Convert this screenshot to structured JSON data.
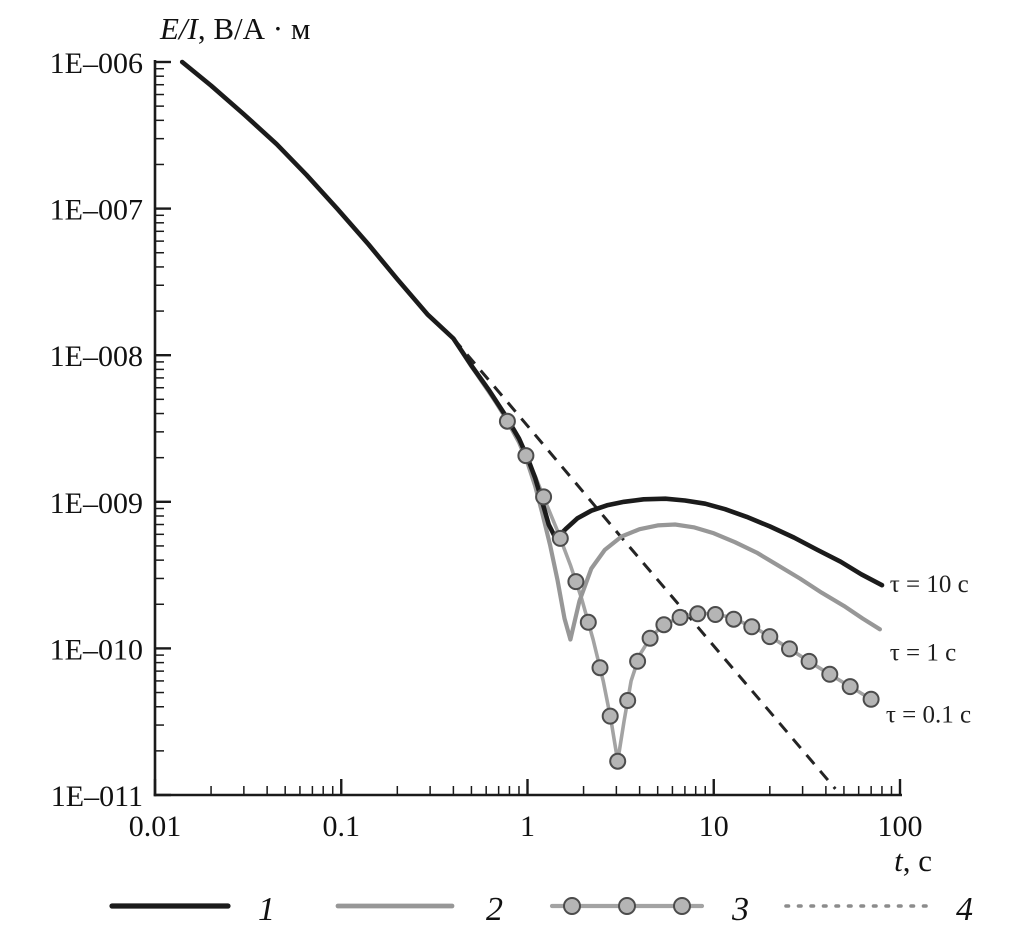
{
  "chart_data": {
    "type": "line",
    "title": "",
    "background": "#ffffff",
    "grid": false,
    "legend_position": "bottom",
    "x_axis": {
      "label": "t, с",
      "label_italic": "t",
      "label_rest": ", с",
      "scale": "log",
      "min": 0.01,
      "max": 100,
      "ticks": [
        {
          "label": "0.01",
          "value": 0.01
        },
        {
          "label": "0.1",
          "value": 0.1
        },
        {
          "label": "1",
          "value": 1
        },
        {
          "label": "10",
          "value": 10
        },
        {
          "label": "100",
          "value": 100
        }
      ]
    },
    "y_axis": {
      "label": "E/I, В/А · м",
      "label_italic": "E/I",
      "label_rest": ", В/А · м",
      "scale": "log",
      "min": 1e-11,
      "max": 1e-06,
      "ticks": [
        {
          "label": "1E–006",
          "value": 1e-06
        },
        {
          "label": "1E–007",
          "value": 1e-07
        },
        {
          "label": "1E–008",
          "value": 1e-08
        },
        {
          "label": "1E–009",
          "value": 1e-09
        },
        {
          "label": "1E–010",
          "value": 1e-10
        },
        {
          "label": "1E–011",
          "value": 1e-11
        }
      ]
    },
    "series": [
      {
        "id": "1",
        "legend_label": "1",
        "annotation": "τ = 10 с",
        "style": "solid",
        "color": "#1b1b1b",
        "width": 4.6,
        "points": [
          [
            0.014,
            1e-06
          ],
          [
            0.02,
            6.9e-07
          ],
          [
            0.03,
            4.4e-07
          ],
          [
            0.045,
            2.75e-07
          ],
          [
            0.065,
            1.7e-07
          ],
          [
            0.095,
            1e-07
          ],
          [
            0.14,
            5.7e-08
          ],
          [
            0.2,
            3.3e-08
          ],
          [
            0.29,
            1.9e-08
          ],
          [
            0.4,
            1.3e-08
          ],
          [
            0.5,
            8.5e-09
          ],
          [
            0.62,
            5.8e-09
          ],
          [
            0.75,
            4e-09
          ],
          [
            0.9,
            2.7e-09
          ],
          [
            1.0,
            2e-09
          ],
          [
            1.1,
            1.45e-09
          ],
          [
            1.2,
            1e-09
          ],
          [
            1.3,
            7e-10
          ],
          [
            1.42,
            5.6e-10
          ],
          [
            1.6,
            6.5e-10
          ],
          [
            1.85,
            7.7e-10
          ],
          [
            2.2,
            8.7e-10
          ],
          [
            2.7,
            9.5e-10
          ],
          [
            3.3,
            1e-09
          ],
          [
            4.2,
            1.04e-09
          ],
          [
            5.5,
            1.05e-09
          ],
          [
            7,
            1.02e-09
          ],
          [
            9,
            9.7e-10
          ],
          [
            11.5,
            8.9e-10
          ],
          [
            15,
            7.9e-10
          ],
          [
            20,
            6.8e-10
          ],
          [
            27,
            5.7e-10
          ],
          [
            36,
            4.7e-10
          ],
          [
            48,
            3.9e-10
          ],
          [
            62,
            3.2e-10
          ],
          [
            80,
            2.7e-10
          ]
        ]
      },
      {
        "id": "2",
        "legend_label": "2",
        "annotation": "τ = 1 с",
        "style": "solid",
        "color": "#979797",
        "width": 4.2,
        "points": [
          [
            0.4,
            1.3e-08
          ],
          [
            0.5,
            8.4e-09
          ],
          [
            0.62,
            5.7e-09
          ],
          [
            0.75,
            3.9e-09
          ],
          [
            0.9,
            2.55e-09
          ],
          [
            1.0,
            1.85e-09
          ],
          [
            1.1,
            1.28e-09
          ],
          [
            1.2,
            8.4e-10
          ],
          [
            1.32,
            5.1e-10
          ],
          [
            1.45,
            2.9e-10
          ],
          [
            1.58,
            1.6e-10
          ],
          [
            1.7,
            1.15e-10
          ],
          [
            1.9,
            2.1e-10
          ],
          [
            2.2,
            3.5e-10
          ],
          [
            2.6,
            4.7e-10
          ],
          [
            3.2,
            5.8e-10
          ],
          [
            4,
            6.5e-10
          ],
          [
            5,
            6.9e-10
          ],
          [
            6.2,
            7e-10
          ],
          [
            7.8,
            6.7e-10
          ],
          [
            10,
            6.1e-10
          ],
          [
            13,
            5.3e-10
          ],
          [
            17,
            4.5e-10
          ],
          [
            22,
            3.7e-10
          ],
          [
            29,
            3e-10
          ],
          [
            38,
            2.4e-10
          ],
          [
            50,
            1.95e-10
          ],
          [
            63,
            1.6e-10
          ],
          [
            78,
            1.35e-10
          ]
        ]
      },
      {
        "id": "3",
        "legend_label": "3",
        "annotation": "τ = 0.1 с",
        "style": "solid-markers",
        "color": "#a3a3a3",
        "width": 3.6,
        "marker": {
          "shape": "circle",
          "radius": 7.5,
          "fill": "#b5b5b5",
          "stroke": "#4c4c4c"
        },
        "points": [
          [
            0.45,
            1.05e-08
          ],
          [
            0.55,
            7e-09
          ],
          [
            0.68,
            4.7e-09
          ],
          [
            0.82,
            3.2e-09
          ],
          [
            0.95,
            2.25e-09
          ],
          [
            1.1,
            1.5e-09
          ],
          [
            1.25,
            1e-09
          ],
          [
            1.45,
            6.3e-10
          ],
          [
            1.7,
            3.7e-10
          ],
          [
            1.95,
            2.2e-10
          ],
          [
            2.25,
            1.15e-10
          ],
          [
            2.55,
            6e-11
          ],
          [
            2.8,
            3.3e-11
          ],
          [
            3.05,
            1.7e-11
          ],
          [
            3.3,
            3.2e-11
          ],
          [
            3.6,
            6e-11
          ],
          [
            4.0,
            9e-11
          ],
          [
            4.6,
            1.2e-10
          ],
          [
            5.4,
            1.45e-10
          ],
          [
            6.5,
            1.62e-10
          ],
          [
            8,
            1.72e-10
          ],
          [
            9.5,
            1.73e-10
          ],
          [
            11.5,
            1.66e-10
          ],
          [
            14,
            1.52e-10
          ],
          [
            17.5,
            1.33e-10
          ],
          [
            22,
            1.12e-10
          ],
          [
            28,
            9.2e-11
          ],
          [
            36,
            7.5e-11
          ],
          [
            46,
            6.2e-11
          ],
          [
            58,
            5.2e-11
          ],
          [
            72,
            4.4e-11
          ]
        ],
        "marker_t": [
          0.78,
          0.98,
          1.22,
          1.5,
          1.82,
          2.12,
          2.45,
          2.78,
          3.05,
          3.45,
          3.9,
          4.55,
          5.4,
          6.6,
          8.2,
          10.2,
          12.8,
          16,
          20,
          25.5,
          32.5,
          42,
          54,
          70
        ]
      },
      {
        "id": "4",
        "legend_label": "4",
        "annotation": null,
        "style": "dashed",
        "color": "#242424",
        "width": 3,
        "dash": "12 9",
        "legend_stroke": "#8c8c8c",
        "legend_dash": "2.5 10",
        "points": [
          [
            0.4,
            1.3e-08
          ],
          [
            0.6,
            7.1e-09
          ],
          [
            1.0,
            3.3e-09
          ],
          [
            1.8,
            1.36e-09
          ],
          [
            3.2,
            5.7e-10
          ],
          [
            6,
            2.24e-10
          ],
          [
            11,
            9e-11
          ],
          [
            20,
            3.7e-11
          ],
          [
            33,
            1.75e-11
          ],
          [
            45,
            1.1e-11
          ]
        ]
      }
    ],
    "annotations": [
      {
        "text": "τ = 10 с",
        "t": 88,
        "E": 2.8e-10
      },
      {
        "text": "τ = 1 с",
        "t": 88,
        "E": 9.5e-11
      },
      {
        "text": "τ = 0.1 с",
        "t": 84,
        "E": 3.6e-11
      }
    ],
    "legend": {
      "items": [
        {
          "label": "1"
        },
        {
          "label": "2"
        },
        {
          "label": "3"
        },
        {
          "label": "4"
        }
      ]
    }
  }
}
